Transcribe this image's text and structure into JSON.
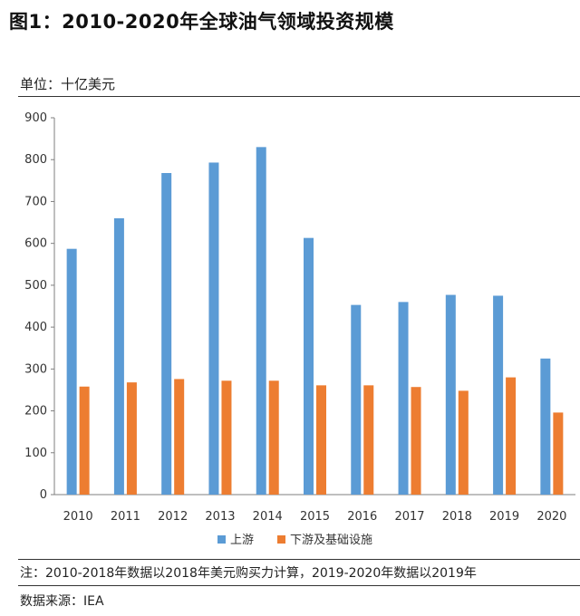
{
  "title": "图1：2010-2020年全球油气领域投资规模",
  "unit": "单位：十亿美元",
  "note": "注：2010-2018年数据以2018年美元购买力计算，2019-2020年数据以2019年",
  "source": "数据来源：IEA",
  "colors": {
    "upstream": "#5b9bd5",
    "downstream": "#ed7d31",
    "axis": "#7f7f7f"
  },
  "chart_data": {
    "type": "bar",
    "categories": [
      "2010",
      "2011",
      "2012",
      "2013",
      "2014",
      "2015",
      "2016",
      "2017",
      "2018",
      "2019",
      "2020"
    ],
    "series": [
      {
        "name": "上游",
        "values": [
          587,
          660,
          768,
          793,
          830,
          613,
          453,
          460,
          477,
          475,
          325
        ]
      },
      {
        "name": "下游及基础设施",
        "values": [
          258,
          268,
          276,
          272,
          272,
          261,
          261,
          257,
          248,
          280,
          196
        ]
      }
    ],
    "yticks": [
      "0",
      "100",
      "200",
      "300",
      "400",
      "500",
      "600",
      "700",
      "800",
      "900"
    ],
    "ylim": [
      0,
      900
    ],
    "title": "",
    "xlabel": "",
    "ylabel": "",
    "legend": "bottom"
  }
}
